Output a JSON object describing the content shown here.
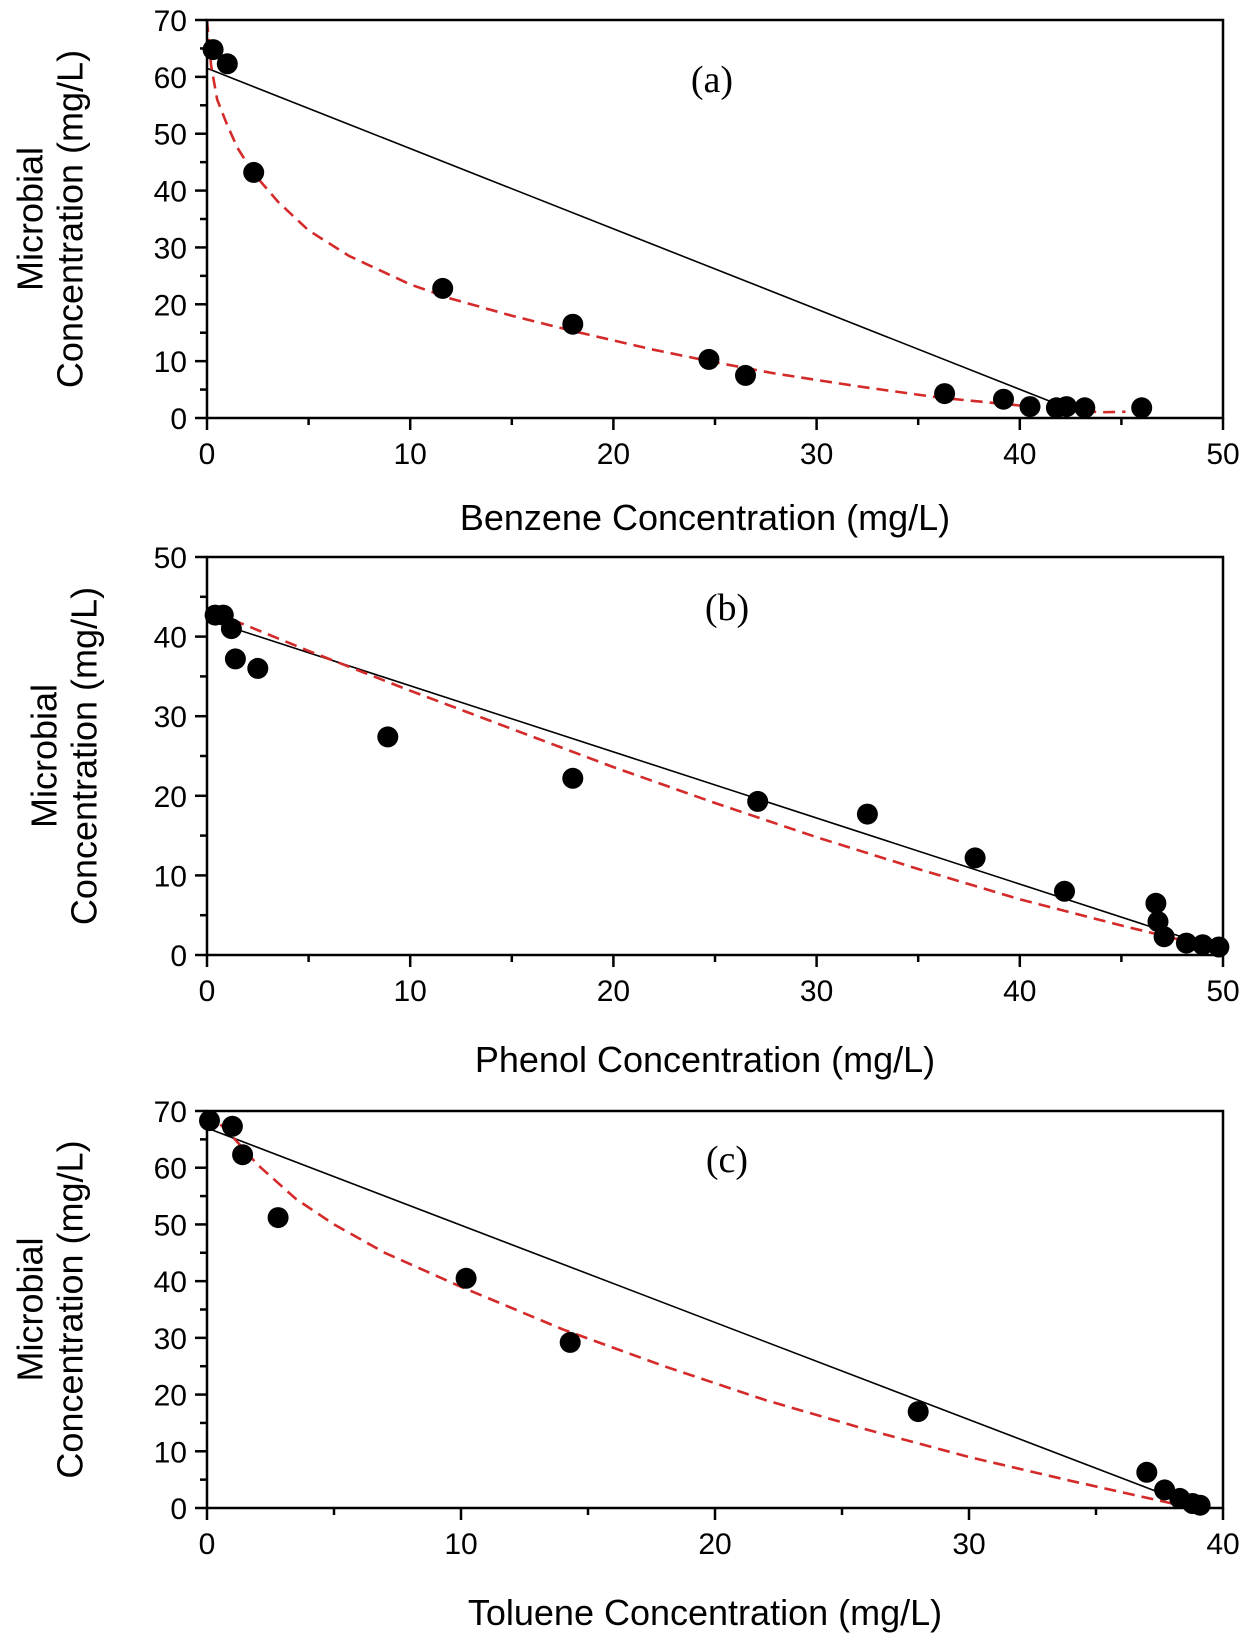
{
  "chart_data": [
    {
      "type": "scatter",
      "panel_label": "(a)",
      "xlabel": "Benzene Concentration (mg/L)",
      "ylabel": [
        "Microbial",
        "Concentration (mg/L)"
      ],
      "xlim": [
        0,
        50
      ],
      "ylim": [
        0,
        70
      ],
      "xticks": [
        0,
        10,
        20,
        30,
        40,
        50
      ],
      "yticks": [
        0,
        10,
        20,
        30,
        40,
        50,
        60,
        70
      ],
      "x_minor_step": 5,
      "y_minor_step": 5,
      "grid": false,
      "series": [
        {
          "kind": "points",
          "x": [
            0.3,
            1.0,
            2.3,
            11.6,
            18.0,
            24.7,
            26.5,
            36.3,
            39.2,
            40.5,
            41.8,
            42.3,
            43.2,
            46.0
          ],
          "y": [
            64.8,
            62.3,
            43.2,
            22.8,
            16.5,
            10.3,
            7.5,
            4.3,
            3.3,
            2.0,
            1.8,
            2.0,
            1.8,
            1.8
          ]
        },
        {
          "kind": "line",
          "color": "#000000",
          "x": [
            0,
            42.3
          ],
          "y": [
            61.5,
            1.8
          ]
        },
        {
          "kind": "dashed",
          "color": "#d42a2a",
          "x": [
            0,
            0.2,
            0.5,
            1.0,
            1.5,
            2.3,
            3.5,
            5.0,
            7.0,
            10.0,
            12.0,
            15.0,
            18.0,
            22.0,
            25.0,
            28.0,
            32.0,
            36.0,
            40.0,
            42.5,
            44.0,
            45.2
          ],
          "y": [
            70.0,
            62.0,
            56.0,
            51.5,
            47.5,
            43.0,
            38.0,
            33.0,
            28.5,
            23.5,
            21.0,
            18.0,
            15.3,
            12.0,
            9.8,
            7.8,
            5.6,
            3.6,
            2.2,
            1.4,
            1.0,
            1.1
          ]
        }
      ]
    },
    {
      "type": "scatter",
      "panel_label": "(b)",
      "xlabel": "Phenol Concentration (mg/L)",
      "ylabel": [
        "Microbial",
        "Concentration (mg/L)"
      ],
      "xlim": [
        0,
        50
      ],
      "ylim": [
        0,
        50
      ],
      "xticks": [
        0,
        10,
        20,
        30,
        40,
        50
      ],
      "yticks": [
        0,
        10,
        20,
        30,
        40,
        50
      ],
      "x_minor_step": 5,
      "y_minor_step": 5,
      "grid": false,
      "series": [
        {
          "kind": "points",
          "x": [
            0.4,
            0.8,
            1.2,
            1.4,
            2.5,
            8.9,
            18.0,
            27.1,
            32.5,
            37.8,
            42.2,
            46.7,
            46.8,
            47.1,
            48.2,
            49.0,
            49.8
          ],
          "y": [
            42.7,
            42.7,
            41.0,
            37.2,
            36.0,
            27.4,
            22.2,
            19.3,
            17.7,
            12.2,
            8.0,
            6.5,
            4.2,
            2.3,
            1.5,
            1.3,
            1.0
          ]
        },
        {
          "kind": "line",
          "color": "#000000",
          "x": [
            0.4,
            50.0
          ],
          "y": [
            41.8,
            0.6
          ]
        },
        {
          "kind": "dashed",
          "color": "#d42a2a",
          "x": [
            0.4,
            5.0,
            10.0,
            15.0,
            20.0,
            25.0,
            30.0,
            35.0,
            40.0,
            45.0,
            50.0
          ],
          "y": [
            43.0,
            38.2,
            33.2,
            28.4,
            23.6,
            19.1,
            14.8,
            10.8,
            7.0,
            3.7,
            0.6
          ]
        }
      ]
    },
    {
      "type": "scatter",
      "panel_label": "(c)",
      "xlabel": "Toluene Concentration (mg/L)",
      "ylabel": [
        "Microbial",
        "Concentration (mg/L)"
      ],
      "xlim": [
        0,
        40
      ],
      "ylim": [
        0,
        70
      ],
      "xticks": [
        0,
        10,
        20,
        30,
        40
      ],
      "yticks": [
        0,
        10,
        20,
        30,
        40,
        50,
        60,
        70
      ],
      "x_minor_step": 5,
      "y_minor_step": 5,
      "grid": false,
      "series": [
        {
          "kind": "points",
          "x": [
            0.1,
            1.0,
            1.4,
            2.8,
            10.2,
            14.3,
            28.0,
            37.0,
            37.7,
            38.3,
            38.8,
            39.1
          ],
          "y": [
            68.3,
            67.3,
            62.3,
            51.2,
            40.5,
            29.2,
            17.0,
            6.3,
            3.2,
            1.7,
            0.8,
            0.5
          ]
        },
        {
          "kind": "line",
          "color": "#000000",
          "x": [
            0,
            38.8
          ],
          "y": [
            67.0,
            0.5
          ]
        },
        {
          "kind": "dashed",
          "color": "#d42a2a",
          "x": [
            0,
            1.0,
            2.0,
            3.5,
            5.0,
            7.0,
            10.0,
            14.0,
            18.0,
            22.0,
            26.0,
            30.0,
            34.0,
            37.0,
            38.5
          ],
          "y": [
            70.0,
            65.5,
            60.5,
            54.5,
            50.0,
            45.0,
            39.0,
            31.5,
            25.0,
            19.0,
            13.8,
            9.0,
            4.8,
            1.8,
            0.3
          ]
        }
      ]
    }
  ]
}
